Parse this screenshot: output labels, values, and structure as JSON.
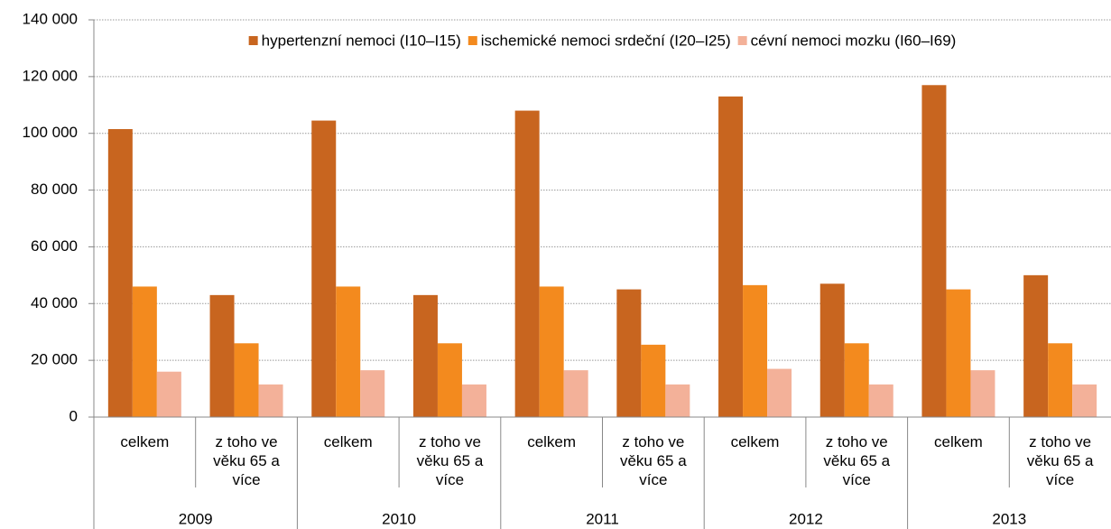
{
  "chart_data": {
    "type": "bar",
    "categories": [
      "celkem",
      "z toho ve věku 65 a více",
      "celkem",
      "z toho ve věku 65 a více",
      "celkem",
      "z toho ve věku 65 a více",
      "celkem",
      "z toho ve věku 65 a více",
      "celkem",
      "z toho ve věku 65 a více"
    ],
    "groups": [
      "2009",
      "2010",
      "2011",
      "2012",
      "2013"
    ],
    "series": [
      {
        "name": "hypertenzní nemoci (I10–I15)",
        "color": "#c8651f",
        "values": [
          101500,
          43000,
          104500,
          43000,
          108000,
          45000,
          113000,
          47000,
          117000,
          50000
        ]
      },
      {
        "name": "ischemické nemoci srdeční (I20–I25)",
        "color": "#f38a1e",
        "values": [
          46000,
          26000,
          46000,
          26000,
          46000,
          25500,
          46500,
          26000,
          45000,
          26000
        ]
      },
      {
        "name": "cévní nemoci mozku (I60–I69)",
        "color": "#f3b199",
        "values": [
          16000,
          11500,
          16500,
          11500,
          16500,
          11500,
          17000,
          11500,
          16500,
          11500
        ]
      }
    ],
    "ylim": [
      0,
      140000
    ],
    "yticks": [
      0,
      {
        "value": 20000,
        "label": "20 000"
      },
      {
        "value": 40000,
        "label": "40 000"
      },
      {
        "value": 60000,
        "label": "60 000"
      },
      {
        "value": 80000,
        "label": "80 000"
      },
      {
        "value": 100000,
        "label": "100 000"
      },
      {
        "value": 120000,
        "label": "120 000"
      },
      {
        "value": 140000,
        "label": "140 000"
      }
    ],
    "grid": true,
    "legend": "top"
  }
}
